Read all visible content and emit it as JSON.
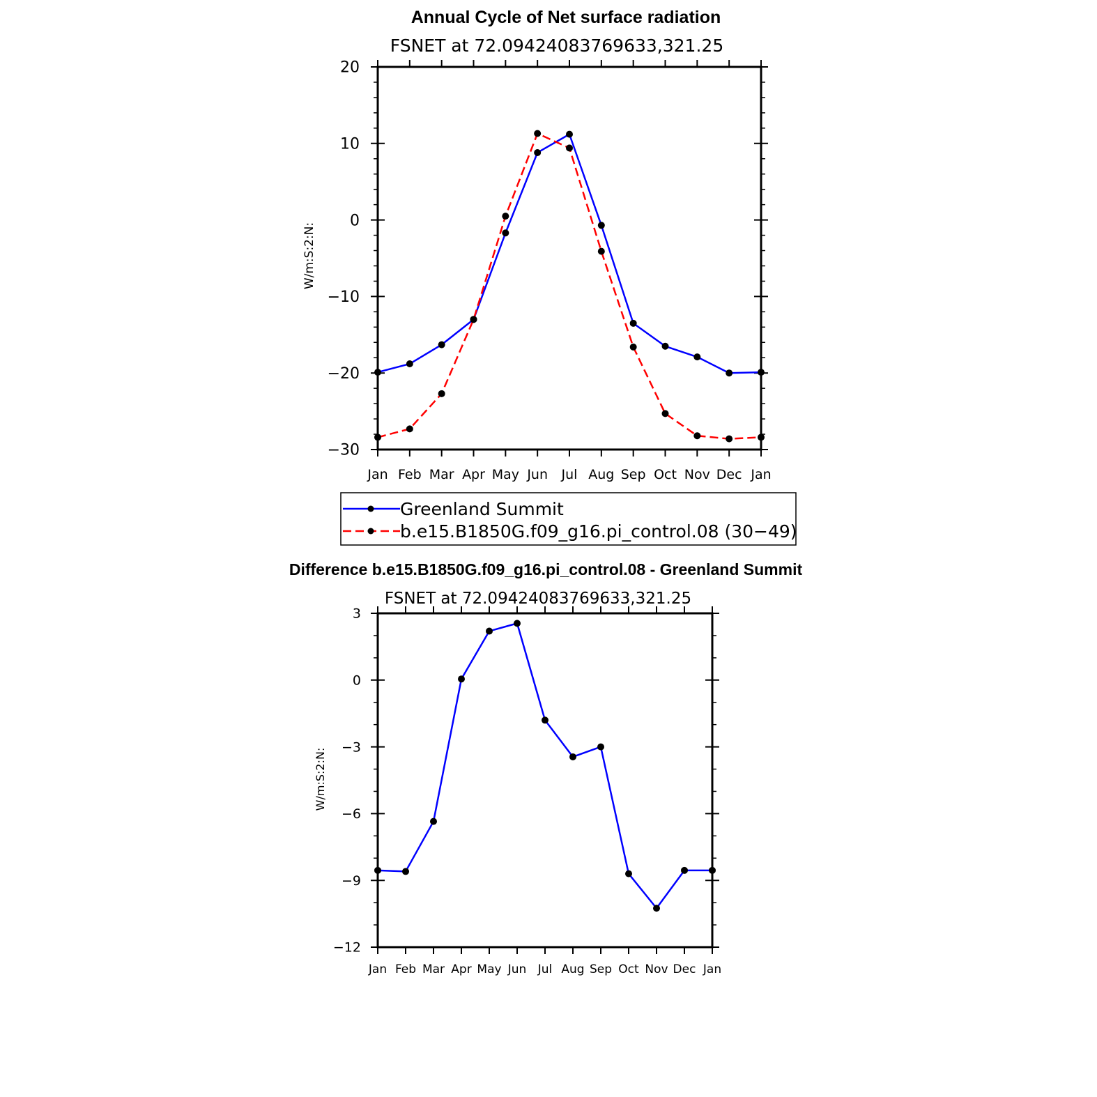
{
  "chart_data": [
    {
      "type": "line",
      "title": "Annual Cycle of Net surface radiation",
      "subtitle": "FSNET at 72.09424083769633,321.25",
      "ylabel": "W/m:S:2:N:",
      "xlabel": "",
      "categories": [
        "Jan",
        "Feb",
        "Mar",
        "Apr",
        "May",
        "Jun",
        "Jul",
        "Aug",
        "Sep",
        "Oct",
        "Nov",
        "Dec",
        "Jan"
      ],
      "ylim": [
        -30,
        20
      ],
      "yticks": [
        "20",
        "10",
        "0",
        "−10",
        "−20",
        "−30"
      ],
      "grid": false,
      "legend_placement": "below",
      "series": [
        {
          "name": "Greenland Summit",
          "color": "#0000ff",
          "dash": "solid",
          "marker": "dot",
          "values": [
            -19.9,
            -18.8,
            -16.3,
            -13.0,
            -1.7,
            8.8,
            11.2,
            -0.7,
            -13.5,
            -16.5,
            -17.9,
            -20.0,
            -19.9
          ]
        },
        {
          "name": "b.e15.B1850G.f09_g16.pi_control.08 (30−49)",
          "color": "#ff0000",
          "dash": "dashed",
          "marker": "dot",
          "values": [
            -28.4,
            -27.3,
            -22.7,
            -13.0,
            0.5,
            11.3,
            9.4,
            -4.1,
            -16.6,
            -25.3,
            -28.2,
            -28.6,
            -28.4
          ]
        }
      ]
    },
    {
      "type": "line",
      "title": "Difference b.e15.B1850G.f09_g16.pi_control.08 - Greenland Summit",
      "subtitle": "FSNET at 72.09424083769633,321.25",
      "ylabel": "W/m:S:2:N:",
      "xlabel": "",
      "categories": [
        "Jan",
        "Feb",
        "Mar",
        "Apr",
        "May",
        "Jun",
        "Jul",
        "Aug",
        "Sep",
        "Oct",
        "Nov",
        "Dec",
        "Jan"
      ],
      "ylim": [
        -12,
        3
      ],
      "yticks": [
        "3",
        "0",
        "−3",
        "−6",
        "−9",
        "−12"
      ],
      "grid": false,
      "series": [
        {
          "color": "#0000ff",
          "dash": "solid",
          "marker": "dot",
          "values": [
            -8.55,
            -8.6,
            -6.35,
            0.05,
            2.2,
            2.55,
            -1.8,
            -3.45,
            -3.0,
            -8.7,
            -10.25,
            -8.55,
            -8.55
          ]
        }
      ]
    }
  ]
}
